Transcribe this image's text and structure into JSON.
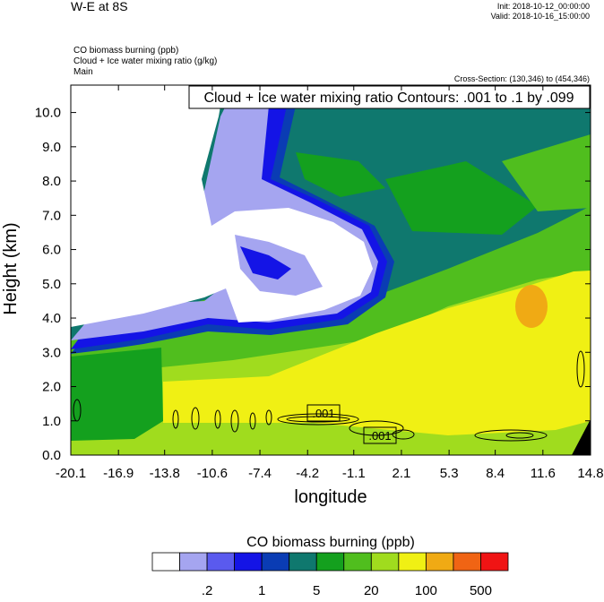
{
  "chart_data": {
    "type": "contour",
    "title": "W-E at 8S",
    "init": "Init: 2018-10-12_00:00:00",
    "valid": "Valid: 2018-10-16_15:00:00",
    "fields": [
      "CO biomass burning   (ppb)",
      "Cloud + Ice water mixing ratio   (g/kg)",
      "Main"
    ],
    "cross_section": "Cross-Section: (130,346) to (454,346)",
    "contour_info": "Cloud + Ice water mixing ratio Contours: .001 to .1 by .099",
    "contour_labels": [
      ".001",
      ".001"
    ],
    "xlabel": "longitude",
    "ylabel": "Height (km)",
    "xlim": [
      -20.1,
      14.8
    ],
    "xticks": [
      -20.1,
      -16.9,
      -13.8,
      -10.6,
      -7.4,
      -4.2,
      -1.1,
      2.1,
      5.3,
      8.4,
      11.6,
      14.8
    ],
    "ylim": [
      0,
      10.8
    ],
    "yticks": [
      {
        "value": 0,
        "label": "0.0"
      },
      {
        "value": 1,
        "label": "1.0"
      },
      {
        "value": 2,
        "label": "2.0"
      },
      {
        "value": 3,
        "label": "3.0"
      },
      {
        "value": 4,
        "label": "4.0"
      },
      {
        "value": 5,
        "label": "5.0"
      },
      {
        "value": 6,
        "label": "6.0"
      },
      {
        "value": 7,
        "label": "7.0"
      },
      {
        "value": 8,
        "label": "8.0"
      },
      {
        "value": 9,
        "label": "9.0"
      },
      {
        "value": 10,
        "label": "10.0"
      }
    ],
    "colorbar": {
      "title": "CO biomass burning  (ppb)",
      "colors": [
        "#ffffff",
        "#a5a5f0",
        "#5a5aee",
        "#1414e6",
        "#0a3cb4",
        "#0f786e",
        "#14a01e",
        "#50be1e",
        "#a0dc1e",
        "#f0f014",
        "#f0aa14",
        "#f06414",
        "#f01414"
      ],
      "labels": [
        {
          "value": 0.2,
          "label": ".2"
        },
        1,
        5,
        20,
        100,
        500
      ]
    }
  }
}
